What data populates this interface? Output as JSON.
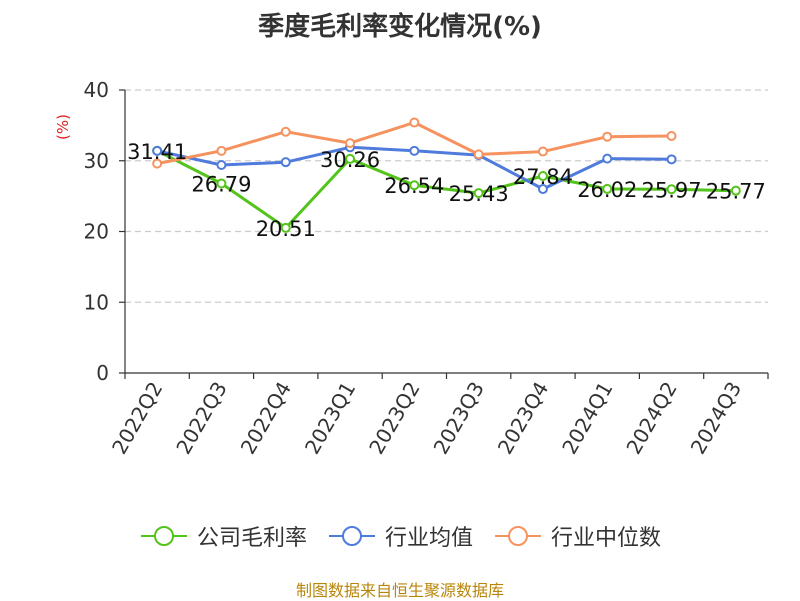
{
  "chart_data": {
    "type": "line",
    "title": "季度毛利率变化情况(%)",
    "ylabel": "(%)",
    "categories": [
      "2022Q2",
      "2022Q3",
      "2022Q4",
      "2023Q1",
      "2023Q2",
      "2023Q3",
      "2023Q4",
      "2024Q1",
      "2024Q2",
      "2024Q3"
    ],
    "ylim": [
      0,
      40
    ],
    "yticks": [
      0,
      10,
      20,
      30,
      40
    ],
    "grid": true,
    "legend_position": "bottom",
    "series": [
      {
        "name": "公司毛利率",
        "color": "#52c41a",
        "show_labels": true,
        "values": [
          31.41,
          26.79,
          20.51,
          30.26,
          26.54,
          25.43,
          27.84,
          26.02,
          25.97,
          25.77
        ],
        "labels": [
          "31.41",
          "26.79",
          "20.51",
          "30.26",
          "26.54",
          "25.43",
          "27.84",
          "26.02",
          "25.97",
          "25.77"
        ]
      },
      {
        "name": "行业均值",
        "color": "#4e7bdc",
        "show_labels": false,
        "values": [
          31.4,
          29.4,
          29.8,
          31.9,
          31.4,
          30.8,
          26.0,
          30.3,
          30.2,
          null
        ]
      },
      {
        "name": "行业中位数",
        "color": "#f4935f",
        "show_labels": false,
        "values": [
          29.6,
          31.4,
          34.1,
          32.5,
          35.4,
          30.9,
          31.3,
          33.4,
          33.5,
          null
        ]
      }
    ],
    "source": "制图数据来自恒生聚源数据库"
  }
}
